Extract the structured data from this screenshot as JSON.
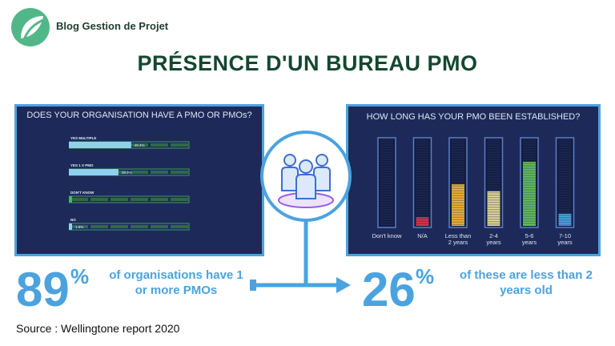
{
  "brand": {
    "name": "Blog Gestion de Projet"
  },
  "title": "PRÉSENCE D'UN BUREAU PMO",
  "colors": {
    "title": "#14472f",
    "accent": "#4aa3df",
    "panel": "#1d2a59",
    "logo": "#52b788"
  },
  "icons": {
    "logo": "leaf-circle-icon",
    "center": "people-group-icon"
  },
  "left_panel": {
    "question": "DOES YOUR ORGANISATION HAVE A PMO OR PMOs?",
    "options": [
      {
        "label": "YES MULTIPLE",
        "pct_text": "49.4%"
      },
      {
        "label": "YES 1 X PMO",
        "pct_text": "39.3%"
      },
      {
        "label": "DON'T KNOW",
        "pct_text": ""
      },
      {
        "label": "NO",
        "pct_text": "1.9%"
      }
    ]
  },
  "right_panel": {
    "question": "HOW LONG HAS YOUR PMO BEEN ESTABLISHED?"
  },
  "chart_data": [
    {
      "type": "bar",
      "title": "DOES YOUR ORGANISATION HAVE A PMO OR PMOs?",
      "categories": [
        "YES MULTIPLE",
        "YES 1 X PMO",
        "DON'T KNOW",
        "NO"
      ],
      "values": [
        49.4,
        39.3,
        1,
        1.9
      ],
      "orientation": "horizontal",
      "ylim": [
        0,
        100
      ]
    },
    {
      "type": "bar",
      "title": "HOW LONG HAS YOUR PMO BEEN ESTABLISHED?",
      "categories": [
        "Don't know",
        "N/A",
        "Less than 2 years",
        "2-4 years",
        "5-6 years",
        "7-10 years"
      ],
      "values": [
        0,
        5,
        24,
        20,
        37,
        7
      ],
      "colors": [
        "#7f8aa8",
        "#d8334a",
        "#f2b531",
        "#e4d996",
        "#63c057",
        "#4aa3df"
      ],
      "ylim": [
        0,
        50
      ]
    }
  ],
  "stats": {
    "left_num": "89",
    "left_pct": "%",
    "left_text_1": "of organisations have 1",
    "left_text_2": "or more PMOs",
    "right_num": "26",
    "right_pct": "%",
    "right_text_1": "of these are less than 2",
    "right_text_2": "years old"
  },
  "source": "Source : Wellingtone report 2020"
}
